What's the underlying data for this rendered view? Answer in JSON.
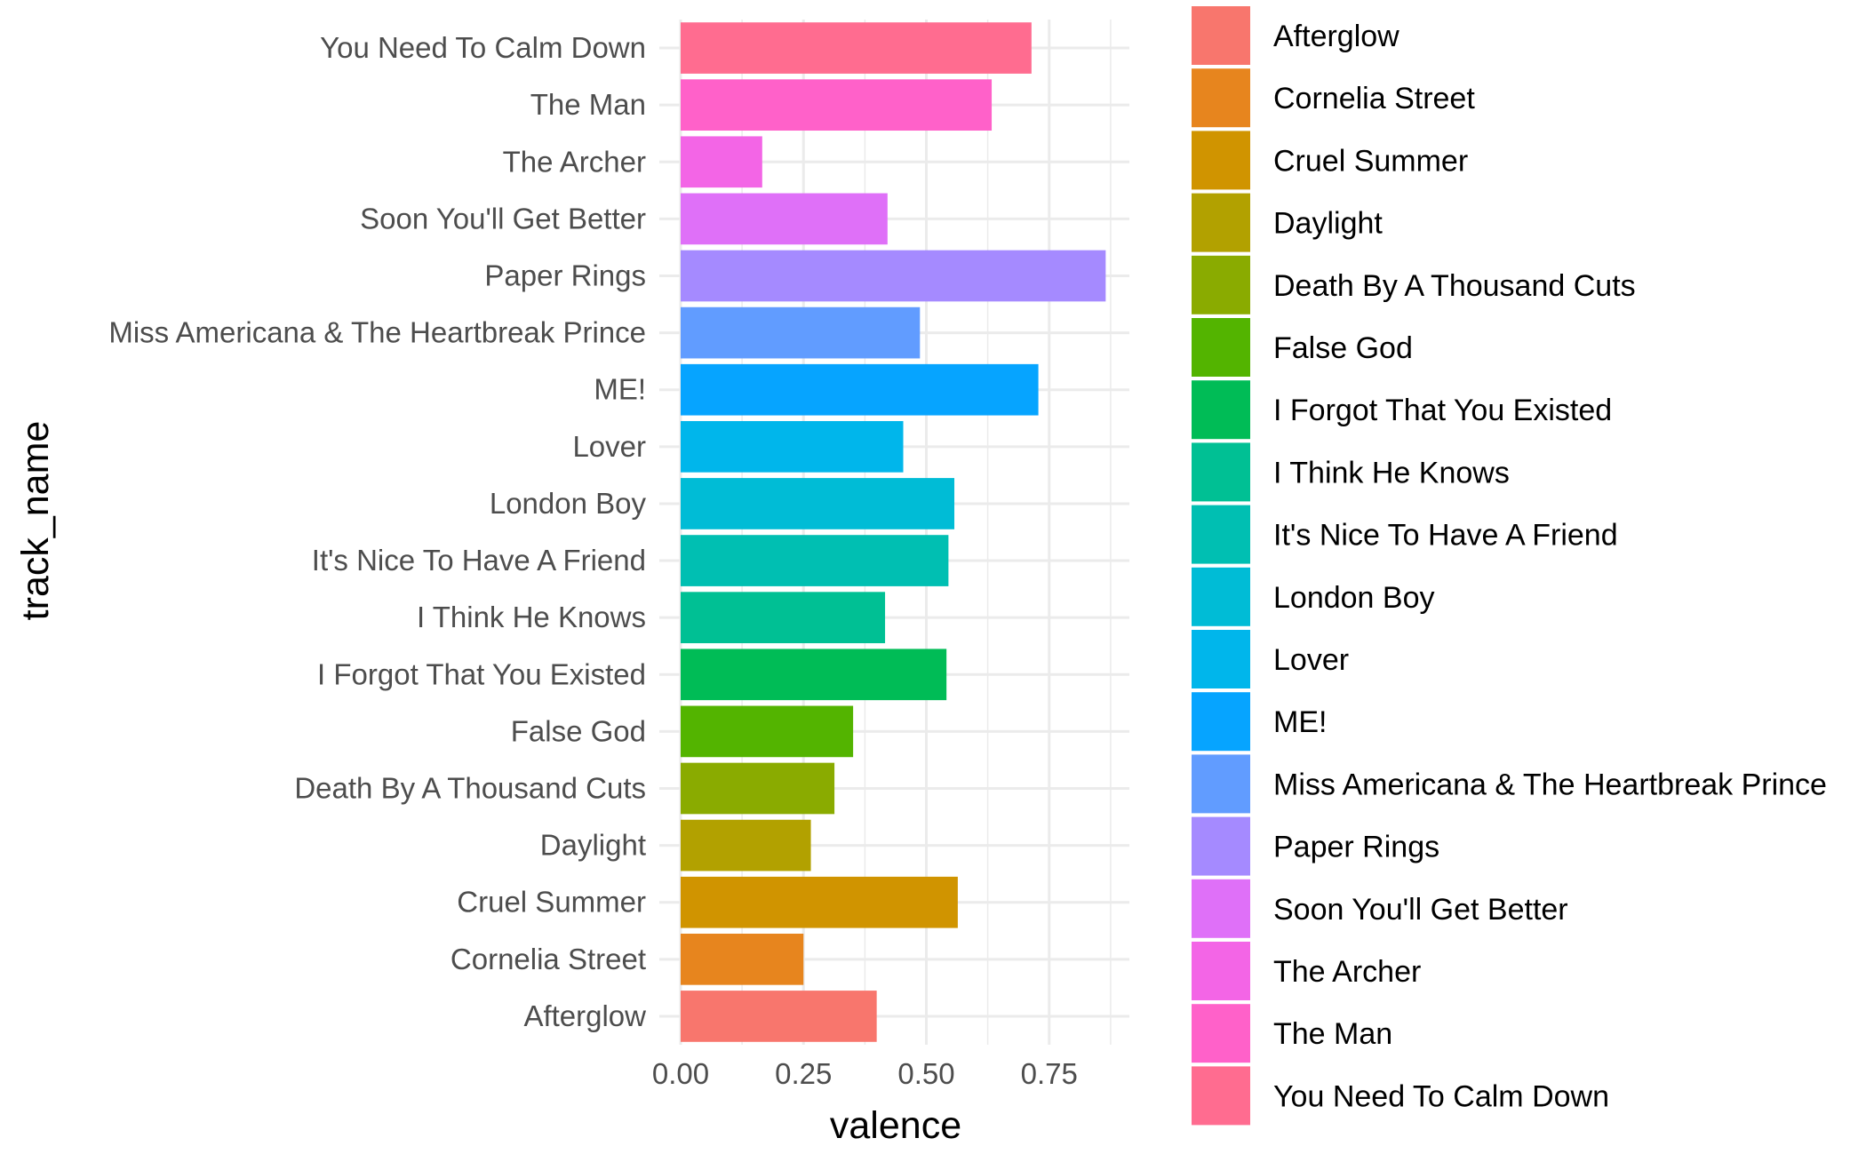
{
  "chart_data": {
    "type": "bar",
    "orientation": "horizontal",
    "xlabel": "valence",
    "ylabel": "track_name",
    "xlim": [
      0,
      0.9
    ],
    "x_ticks": [
      "0.00",
      "0.25",
      "0.50",
      "0.75"
    ],
    "x_tick_values": [
      0,
      0.25,
      0.5,
      0.75
    ],
    "grid": true,
    "legend_position": "right",
    "categories": [
      "Afterglow",
      "Cornelia Street",
      "Cruel Summer",
      "Daylight",
      "Death By A Thousand Cuts",
      "False God",
      "I Forgot That You Existed",
      "I Think He Knows",
      "It's Nice To Have A Friend",
      "London Boy",
      "Lover",
      "ME!",
      "Miss Americana & The Heartbreak Prince",
      "Paper Rings",
      "Soon You'll Get Better",
      "The Archer",
      "The Man",
      "You Need To Calm Down"
    ],
    "values": [
      0.399,
      0.25,
      0.564,
      0.265,
      0.313,
      0.351,
      0.541,
      0.416,
      0.545,
      0.557,
      0.453,
      0.728,
      0.487,
      0.865,
      0.421,
      0.166,
      0.633,
      0.714
    ],
    "colors": [
      "#F8766D",
      "#E7851E",
      "#D09400",
      "#B2A100",
      "#8AAB00",
      "#53B400",
      "#00BC56",
      "#00C094",
      "#00BFB2",
      "#00BCD6",
      "#00B6EB",
      "#06A4FF",
      "#619CFF",
      "#A58AFF",
      "#DF70F8",
      "#F365E6",
      "#FF61C9",
      "#FF6C90"
    ]
  }
}
